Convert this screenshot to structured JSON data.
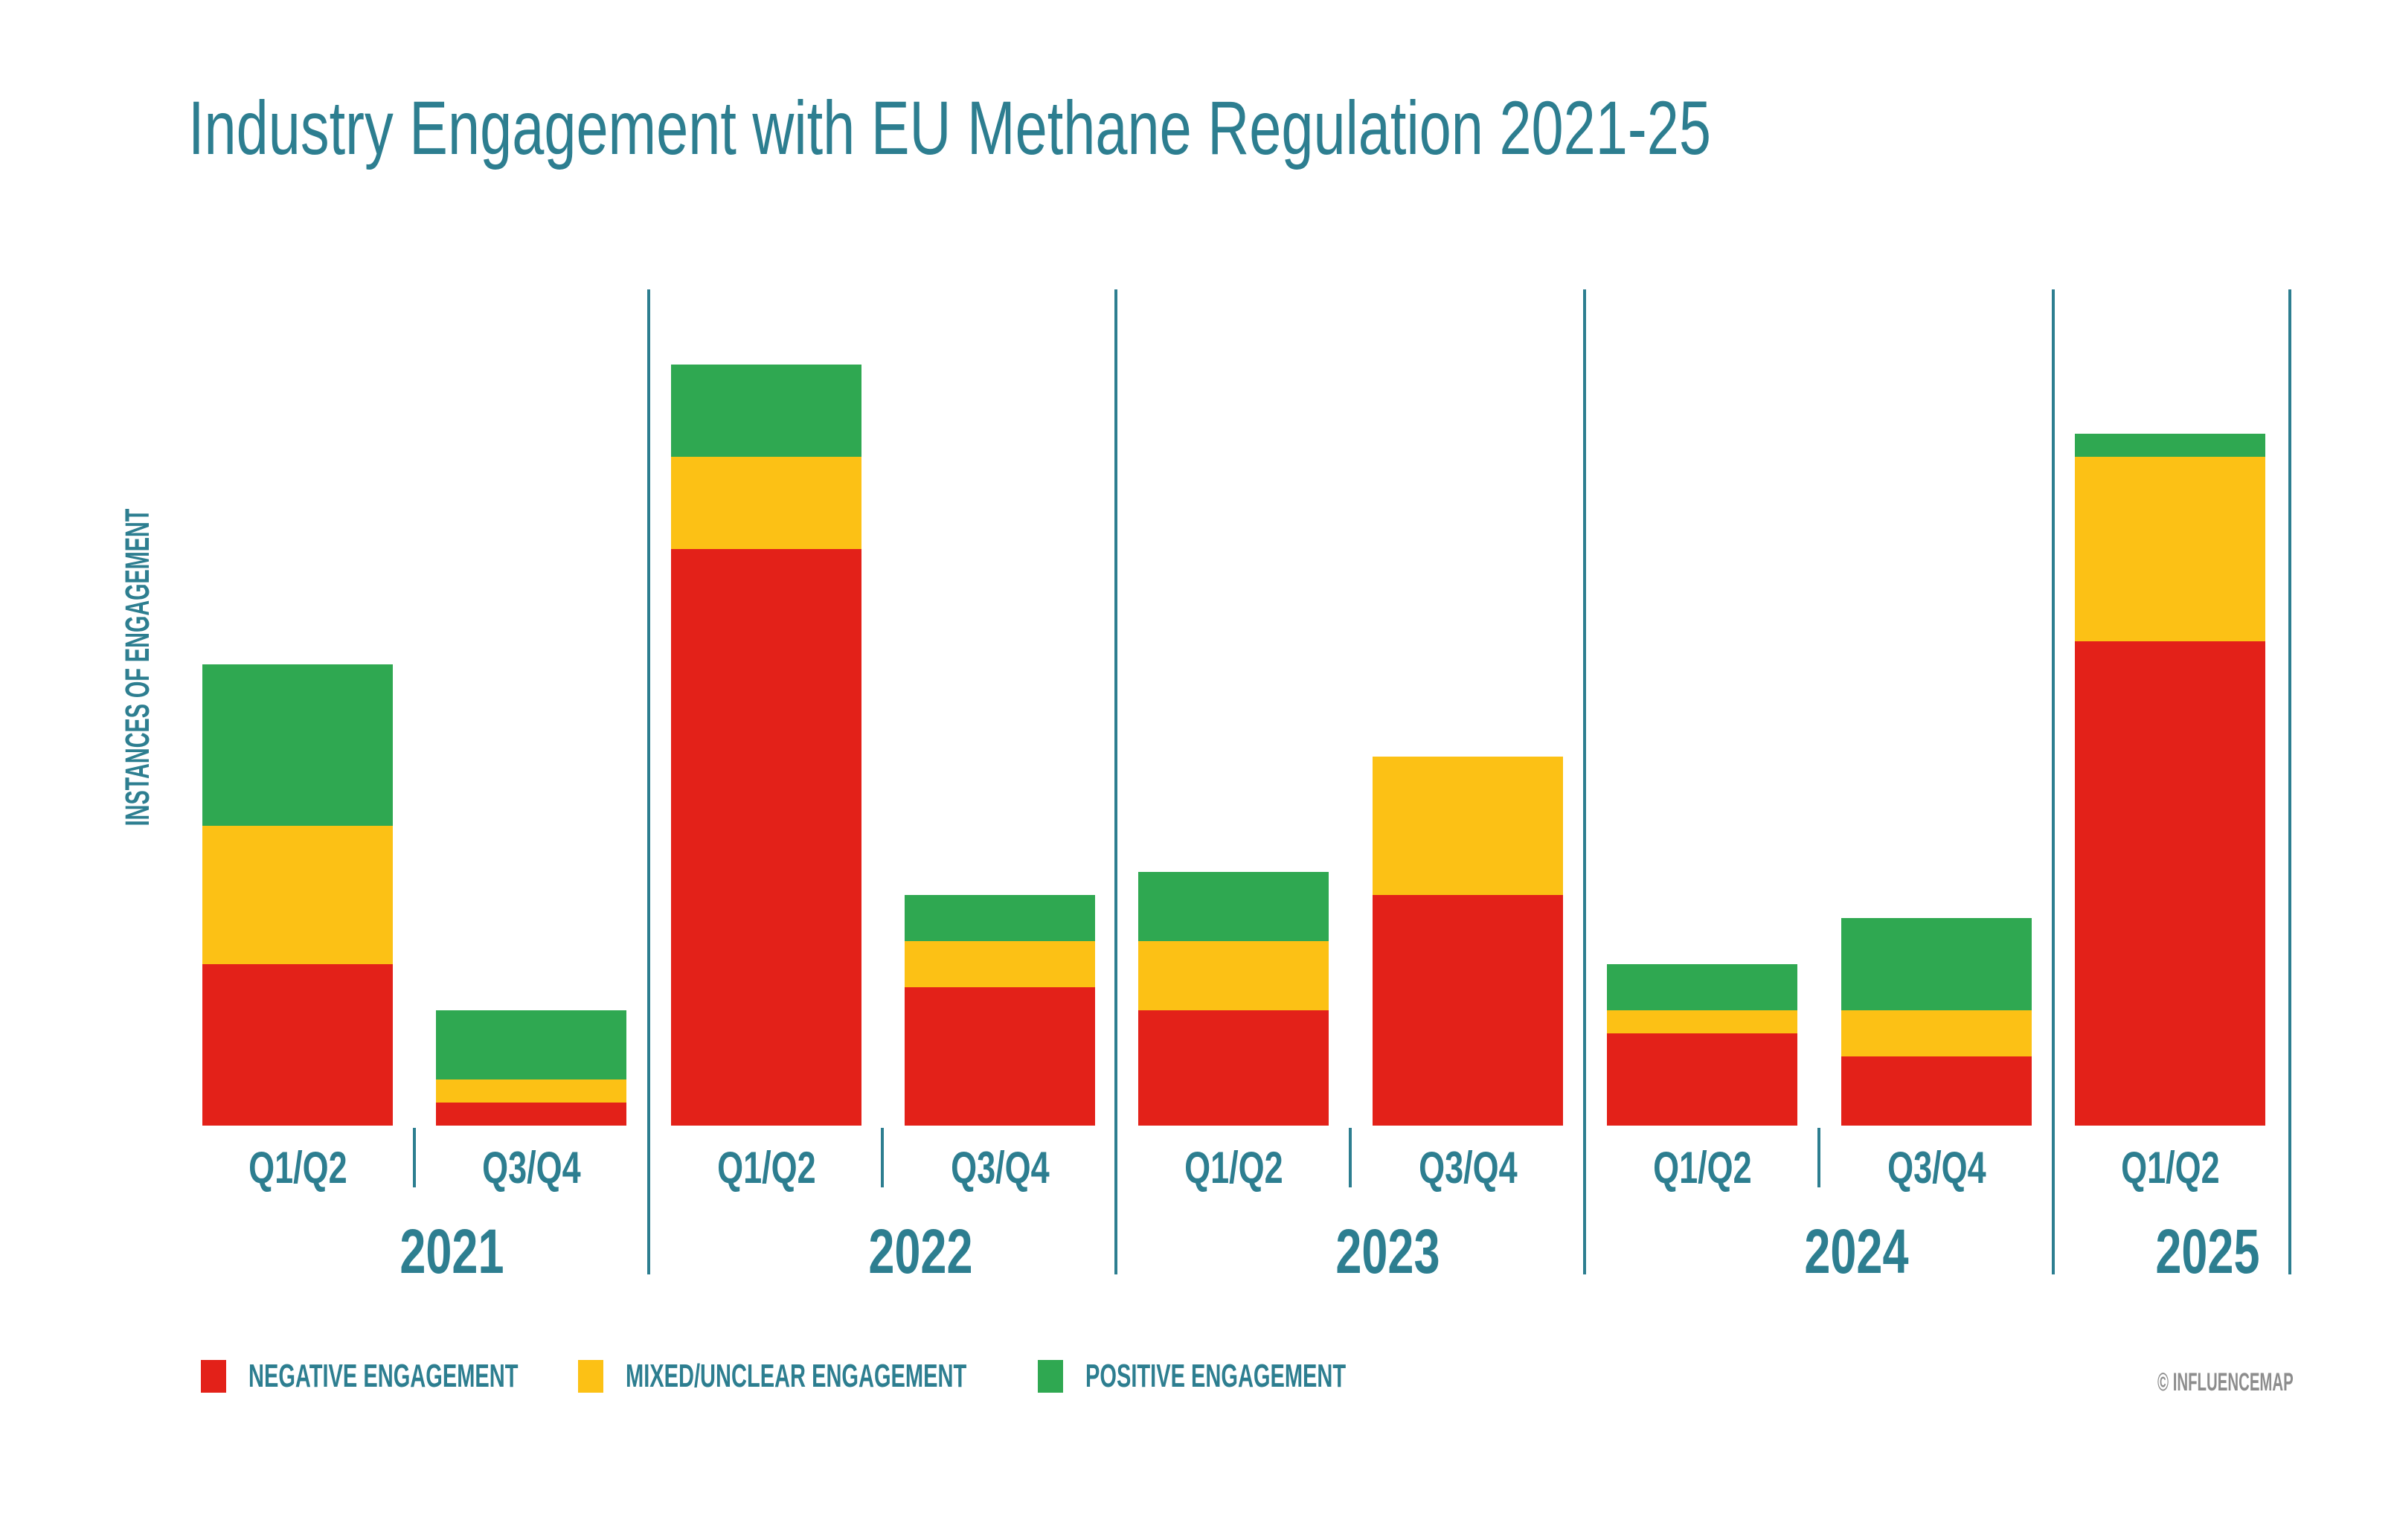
{
  "title": "Industry Engagement with EU Methane Regulation 2021-25",
  "y_axis_label": "INSTANCES OF ENGAGEMENT",
  "watermark": "© INFLUENCEMAP",
  "colors": {
    "negative": "#e32119",
    "mixed": "#fcc115",
    "positive": "#2fa851",
    "teal_text": "#2d7e90",
    "watermark_gray": "#8d8d8d"
  },
  "legend": {
    "position": "bottom-left",
    "items": [
      {
        "label": "NEGATIVE ENGAGEMENT",
        "color_key": "negative"
      },
      {
        "label": "MIXED/UNCLEAR ENGAGEMENT",
        "color_key": "mixed"
      },
      {
        "label": "POSITIVE ENGAGEMENT",
        "color_key": "positive"
      }
    ]
  },
  "chart_data": {
    "type": "bar",
    "stacked": true,
    "title": "Industry Engagement with EU Methane Regulation 2021-25",
    "xlabel": "",
    "ylabel": "INSTANCES OF ENGAGEMENT",
    "grid": false,
    "legend_position": "bottom-left",
    "value_note": "y-axis shows no numeric ticks; values estimated in consistent relative units from bar heights",
    "categories": [
      "2021 Q1/Q2",
      "2021 Q3/Q4",
      "2022 Q1/Q2",
      "2022 Q3/Q4",
      "2023 Q1/Q2",
      "2023 Q3/Q4",
      "2024 Q1/Q2",
      "2024 Q3/Q4",
      "2025 Q1/Q2"
    ],
    "groups": [
      {
        "year": "2021",
        "quarters": [
          "Q1/Q2",
          "Q3/Q4"
        ]
      },
      {
        "year": "2022",
        "quarters": [
          "Q1/Q2",
          "Q3/Q4"
        ]
      },
      {
        "year": "2023",
        "quarters": [
          "Q1/Q2",
          "Q3/Q4"
        ]
      },
      {
        "year": "2024",
        "quarters": [
          "Q1/Q2",
          "Q3/Q4"
        ]
      },
      {
        "year": "2025",
        "quarters": [
          "Q1/Q2"
        ]
      }
    ],
    "series": [
      {
        "key": "negative",
        "name": "NEGATIVE ENGAGEMENT",
        "color": "#e32119",
        "values": [
          14,
          2,
          50,
          12,
          10,
          20,
          8,
          6,
          42
        ]
      },
      {
        "key": "mixed",
        "name": "MIXED/UNCLEAR ENGAGEMENT",
        "color": "#fcc115",
        "values": [
          12,
          2,
          8,
          4,
          6,
          12,
          2,
          4,
          16
        ]
      },
      {
        "key": "positive",
        "name": "POSITIVE ENGAGEMENT",
        "color": "#2fa851",
        "values": [
          14,
          6,
          8,
          4,
          6,
          0,
          4,
          8,
          2
        ]
      }
    ],
    "totals": [
      40,
      10,
      66,
      20,
      22,
      32,
      14,
      18,
      60
    ]
  }
}
